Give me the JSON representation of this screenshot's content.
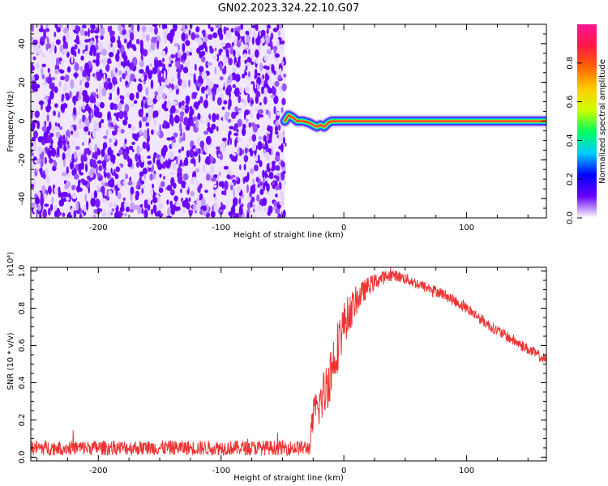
{
  "title": "GN02.2023.324.22.10.G07",
  "chart_data": [
    {
      "type": "heatmap",
      "xlabel": "Height of straight line (km)",
      "ylabel": "Frequency (Hz)",
      "xlim": [
        -255,
        165
      ],
      "ylim": [
        -50,
        50
      ],
      "x_ticks": [
        -200,
        -100,
        0,
        100
      ],
      "x_tick_labels": [
        "-200",
        "-100",
        "0",
        "100"
      ],
      "y_ticks": [
        -40,
        -20,
        0,
        20,
        40
      ],
      "y_tick_labels": [
        "-40",
        "-20",
        "0",
        "20",
        "40"
      ],
      "colorbar": {
        "label": "Normalized spectral amplitude",
        "range": [
          0,
          1
        ],
        "ticks": [
          0.0,
          0.2,
          0.4,
          0.6,
          0.8
        ],
        "tick_labels": [
          "0.0",
          "0.2",
          "0.4",
          "0.6",
          "0.8"
        ],
        "colormap": [
          "#ffffff",
          "#6a00ff",
          "#0000ff",
          "#00ccff",
          "#00ff60",
          "#ccff00",
          "#ffcc00",
          "#ff6600",
          "#ff1744",
          "#ff1493"
        ]
      },
      "noise_region": {
        "x": [
          -255,
          -48
        ],
        "amplitude": 0.15
      },
      "signal_track": {
        "x": [
          -48,
          -45,
          -42,
          -38,
          -33,
          -28,
          -25,
          -22,
          -19,
          -16,
          -13,
          -10,
          -5,
          0,
          50,
          100,
          165
        ],
        "y": [
          0,
          3,
          2,
          0,
          0,
          -1,
          -2,
          -3,
          -2,
          -3,
          -1,
          0,
          0,
          0,
          0,
          0,
          0
        ],
        "amplitude": 1.0
      },
      "grid": false
    },
    {
      "type": "line",
      "xlabel": "Height of straight line (km)",
      "ylabel": "SNR (10 * v/v)",
      "y_multiplier_label": "(x10⁴)",
      "xlim": [
        -255,
        165
      ],
      "ylim": [
        -0.02,
        1.02
      ],
      "x_ticks": [
        -200,
        -100,
        0,
        100
      ],
      "x_tick_labels": [
        "-200",
        "-100",
        "0",
        "100"
      ],
      "y_ticks": [
        0.0,
        0.2,
        0.4,
        0.6,
        0.8,
        1.0
      ],
      "y_tick_labels": [
        "0.0",
        "0.2",
        "0.4",
        "0.6",
        "0.8",
        "1.0"
      ],
      "series": [
        {
          "color": "#ee3333",
          "x": [
            -255,
            -200,
            -150,
            -100,
            -60,
            -28,
            -25,
            -20,
            -15,
            -10,
            -5,
            0,
            10,
            20,
            30,
            40,
            50,
            60,
            80,
            100,
            120,
            140,
            165
          ],
          "y": [
            0.05,
            0.05,
            0.05,
            0.05,
            0.05,
            0.05,
            0.22,
            0.28,
            0.36,
            0.48,
            0.6,
            0.72,
            0.84,
            0.92,
            0.96,
            0.98,
            0.96,
            0.93,
            0.88,
            0.8,
            0.7,
            0.62,
            0.52
          ],
          "noise": [
            0.04,
            0.04,
            0.04,
            0.04,
            0.04,
            0.04,
            0.1,
            0.12,
            0.14,
            0.16,
            0.14,
            0.12,
            0.08,
            0.05,
            0.04,
            0.03,
            0.03,
            0.03,
            0.03,
            0.03,
            0.03,
            0.03,
            0.03
          ]
        }
      ],
      "grid": false
    }
  ]
}
